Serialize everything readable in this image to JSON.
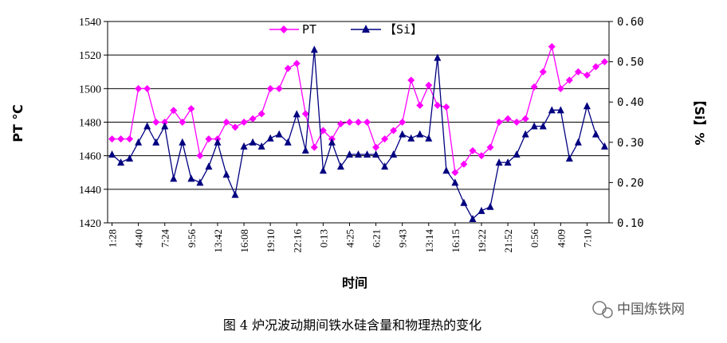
{
  "chart_data": {
    "type": "line",
    "title": "",
    "xlabel": "时间",
    "ylabel_left": "PT ℃",
    "ylabel_right": "【Si】%",
    "ylim_left": [
      1420,
      1540
    ],
    "ylim_right": [
      0.1,
      0.6
    ],
    "yticks_left": [
      "1420",
      "1440",
      "1460",
      "1480",
      "1500",
      "1520",
      "1540"
    ],
    "yticks_right": [
      "0.10",
      "0.20",
      "0.30",
      "0.40",
      "0.50",
      "0.60"
    ],
    "x_tick_labels": [
      "1:28",
      "4:40",
      "7:24",
      "9:56",
      "13:42",
      "16:08",
      "19:10",
      "22:16",
      "0:13",
      "4:25",
      "6:21",
      "9:43",
      "13:14",
      "16:15",
      "19:22",
      "21:52",
      "0:56",
      "4:09",
      "7:10"
    ],
    "grid": true,
    "legend_position": "top",
    "series": [
      {
        "name": "PT",
        "axis": "left",
        "color": "#ff00ff",
        "marker": "diamond",
        "values": [
          1470,
          1470,
          1470,
          1500,
          1500,
          1480,
          1480,
          1487,
          1480,
          1488,
          1460,
          1470,
          1470,
          1480,
          1477,
          1480,
          1482,
          1485,
          1500,
          1500,
          1512,
          1515,
          1485,
          1465,
          1475,
          1470,
          1479,
          1480,
          1480,
          1480,
          1465,
          1470,
          1475,
          1480,
          1505,
          1490,
          1502,
          1490,
          1489,
          1450,
          1455,
          1463,
          1460,
          1465,
          1480,
          1482,
          1480,
          1482,
          1501,
          1510,
          1525,
          1500,
          1505,
          1510,
          1508,
          1513,
          1516
        ]
      },
      {
        "name": "【Si】",
        "axis": "right",
        "color": "#000080",
        "marker": "triangle",
        "values": [
          0.27,
          0.25,
          0.26,
          0.3,
          0.34,
          0.3,
          0.34,
          0.21,
          0.3,
          0.21,
          0.2,
          0.24,
          0.3,
          0.22,
          0.17,
          0.29,
          0.3,
          0.29,
          0.31,
          0.32,
          0.3,
          0.37,
          0.28,
          0.53,
          0.23,
          0.3,
          0.24,
          0.27,
          0.27,
          0.27,
          0.27,
          0.24,
          0.27,
          0.32,
          0.31,
          0.32,
          0.31,
          0.51,
          0.23,
          0.2,
          0.15,
          0.11,
          0.13,
          0.14,
          0.25,
          0.25,
          0.27,
          0.32,
          0.34,
          0.34,
          0.38,
          0.38,
          0.26,
          0.3,
          0.39,
          0.32,
          0.29
        ]
      }
    ]
  },
  "caption": "图 4  炉况波动期间铁水硅含量和物理热的变化",
  "watermark": "中国炼铁网"
}
